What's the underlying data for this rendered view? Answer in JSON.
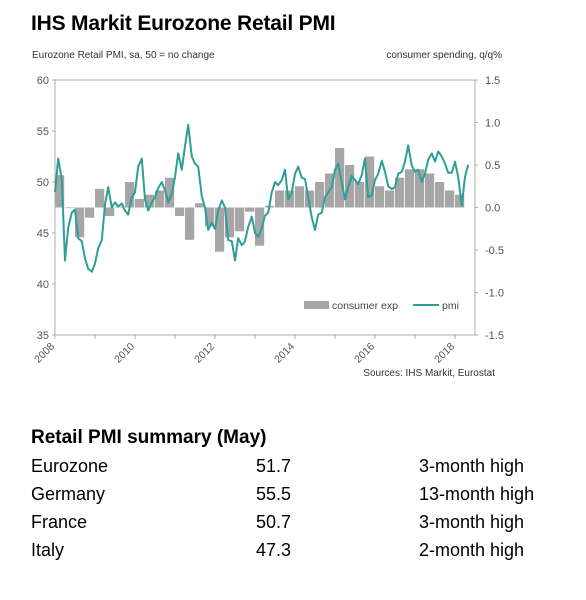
{
  "title": "IHS Markit Eurozone Retail PMI",
  "subtitle_left": "Eurozone Retail PMI, sa, 50 = no change",
  "subtitle_right": "consumer spending, q/q%",
  "sources": "Sources: IHS Markit, Eurostat",
  "chart_data": {
    "type": "line",
    "x_ticks": [
      "2008",
      "2010",
      "2012",
      "2014",
      "2016",
      "2018"
    ],
    "y_left": {
      "ticks": [
        "35",
        "40",
        "45",
        "50",
        "55",
        "60"
      ],
      "range": [
        35,
        60
      ]
    },
    "y_right": {
      "ticks": [
        "-1.5",
        "-1.0",
        "-0.5",
        "0.0",
        "0.5",
        "1.0",
        "1.5"
      ],
      "range": [
        -1.5,
        1.5
      ]
    },
    "legend": {
      "bars": "consumer exp",
      "line": "pmi",
      "placement": "bottom-right"
    },
    "colors": {
      "bars": "#a6a6a6",
      "line": "#2e9e98"
    },
    "series": [
      {
        "name": "consumer exp",
        "kind": "bar",
        "x": [
          2008.0,
          2008.25,
          2008.5,
          2008.75,
          2009.0,
          2009.25,
          2009.5,
          2009.75,
          2010.0,
          2010.25,
          2010.5,
          2010.75,
          2011.0,
          2011.25,
          2011.5,
          2011.75,
          2012.0,
          2012.25,
          2012.5,
          2012.75,
          2013.0,
          2013.25,
          2013.5,
          2013.75,
          2014.0,
          2014.25,
          2014.5,
          2014.75,
          2015.0,
          2015.25,
          2015.5,
          2015.75,
          2016.0,
          2016.25,
          2016.5,
          2016.75,
          2017.0,
          2017.25,
          2017.5,
          2017.75,
          2018.0
        ],
        "values": [
          0.38,
          0.0,
          -0.35,
          -0.12,
          0.22,
          -0.1,
          0.01,
          0.3,
          0.1,
          0.15,
          0.2,
          0.35,
          -0.1,
          -0.38,
          0.05,
          -0.22,
          -0.52,
          -0.35,
          -0.28,
          -0.05,
          -0.45,
          0.02,
          0.2,
          0.2,
          0.25,
          0.2,
          0.3,
          0.4,
          0.7,
          0.5,
          0.3,
          0.6,
          0.25,
          0.2,
          0.35,
          0.45,
          0.45,
          0.4,
          0.3,
          0.2,
          0.15
        ]
      },
      {
        "name": "pmi",
        "kind": "line",
        "x": [
          2008.0,
          2008.08,
          2008.17,
          2008.25,
          2008.33,
          2008.42,
          2008.5,
          2008.58,
          2008.67,
          2008.75,
          2008.83,
          2008.92,
          2009.0,
          2009.08,
          2009.17,
          2009.25,
          2009.33,
          2009.42,
          2009.5,
          2009.58,
          2009.67,
          2009.75,
          2009.83,
          2009.92,
          2010.0,
          2010.08,
          2010.17,
          2010.25,
          2010.33,
          2010.42,
          2010.5,
          2010.58,
          2010.67,
          2010.75,
          2010.83,
          2010.92,
          2011.0,
          2011.08,
          2011.17,
          2011.25,
          2011.33,
          2011.42,
          2011.5,
          2011.58,
          2011.67,
          2011.75,
          2011.83,
          2011.92,
          2012.0,
          2012.08,
          2012.17,
          2012.25,
          2012.33,
          2012.42,
          2012.5,
          2012.58,
          2012.67,
          2012.75,
          2012.83,
          2012.92,
          2013.0,
          2013.08,
          2013.17,
          2013.25,
          2013.33,
          2013.42,
          2013.5,
          2013.58,
          2013.67,
          2013.75,
          2013.83,
          2013.92,
          2014.0,
          2014.08,
          2014.17,
          2014.25,
          2014.33,
          2014.42,
          2014.5,
          2014.58,
          2014.67,
          2014.75,
          2014.83,
          2014.92,
          2015.0,
          2015.08,
          2015.17,
          2015.25,
          2015.33,
          2015.42,
          2015.5,
          2015.58,
          2015.67,
          2015.75,
          2015.83,
          2015.92,
          2016.0,
          2016.08,
          2016.17,
          2016.25,
          2016.33,
          2016.42,
          2016.5,
          2016.58,
          2016.67,
          2016.75,
          2016.83,
          2016.92,
          2017.0,
          2017.08,
          2017.17,
          2017.25,
          2017.33,
          2017.42,
          2017.5,
          2017.58,
          2017.67,
          2017.75,
          2017.83,
          2017.92,
          2018.0,
          2018.08,
          2018.17,
          2018.25,
          2018.33
        ],
        "values": [
          49.0,
          52.3,
          50.2,
          42.3,
          45.5,
          47.0,
          47.3,
          44.5,
          44.2,
          42.5,
          41.5,
          41.2,
          42.0,
          43.5,
          44.3,
          47.8,
          49.5,
          47.5,
          48.0,
          47.6,
          47.9,
          47.2,
          46.8,
          48.5,
          49.0,
          51.5,
          52.3,
          48.3,
          47.2,
          48.0,
          48.5,
          49.4,
          50.0,
          49.2,
          48.0,
          48.8,
          50.5,
          52.8,
          51.2,
          53.5,
          55.6,
          52.5,
          51.8,
          51.5,
          48.6,
          47.5,
          45.3,
          46.0,
          45.4,
          47.2,
          48.2,
          47.5,
          44.3,
          44.2,
          42.3,
          44.5,
          43.8,
          44.2,
          45.6,
          46.6,
          45.0,
          44.6,
          45.5,
          46.7,
          47.0,
          49.0,
          50.0,
          49.7,
          50.2,
          51.2,
          48.3,
          49.0,
          50.8,
          51.5,
          50.4,
          50.3,
          48.5,
          46.5,
          45.3,
          46.8,
          47.0,
          48.5,
          49.0,
          49.5,
          51.2,
          51.8,
          49.9,
          48.3,
          49.5,
          50.6,
          50.2,
          49.8,
          50.7,
          52.3,
          48.5,
          48.7,
          50.2,
          50.8,
          52.1,
          51.0,
          49.6,
          49.3,
          49.5,
          50.8,
          51.0,
          52.0,
          53.6,
          51.6,
          51.0,
          51.2,
          50.0,
          50.8,
          52.2,
          52.8,
          52.0,
          53.0,
          52.5,
          51.8,
          50.9,
          50.9,
          52.0,
          50.5,
          47.7,
          50.5,
          51.7
        ]
      }
    ]
  },
  "summary": {
    "title": "Retail PMI summary (May)",
    "rows": [
      {
        "region": "Eurozone",
        "value": "51.7",
        "note": "3-month high"
      },
      {
        "region": "Germany",
        "value": "55.5",
        "note": "13-month high"
      },
      {
        "region": "France",
        "value": "50.7",
        "note": "3-month high"
      },
      {
        "region": "Italy",
        "value": "47.3",
        "note": "2-month high"
      }
    ]
  }
}
